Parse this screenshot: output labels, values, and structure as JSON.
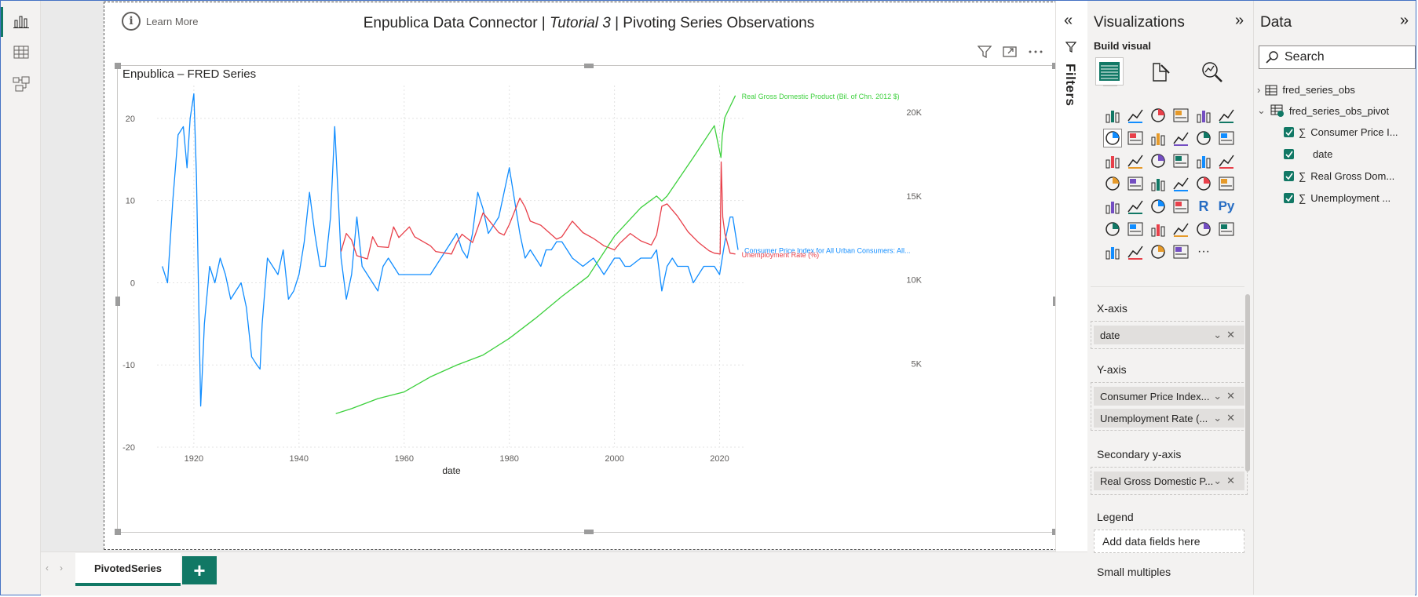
{
  "report": {
    "title_prefix": "Enpublica Data Connector | ",
    "title_italic": "Tutorial 3",
    "title_suffix": " | Pivoting Series Observations",
    "learn_more": "Learn More"
  },
  "chart_data": {
    "type": "line",
    "title": "Enpublica – FRED Series",
    "xlabel": "date",
    "xlim": [
      1913,
      2025
    ],
    "x_ticks": [
      1920,
      1940,
      1960,
      1980,
      2000,
      2020
    ],
    "ylim": [
      -20,
      24
    ],
    "y_ticks": [
      -20,
      -10,
      0,
      10,
      20
    ],
    "y2lim": [
      0,
      21600
    ],
    "y2_ticks": [
      5000,
      10000,
      15000,
      20000
    ],
    "y2_tick_labels": [
      "5K",
      "10K",
      "15K",
      "20K"
    ],
    "grid": true,
    "series": [
      {
        "name": "Consumer Price Index for All Urban Consumers: All...",
        "axis": "y",
        "color": "#118dff",
        "x": [
          1914,
          1915,
          1916,
          1917,
          1918,
          1918.7,
          1919.3,
          1920,
          1920.5,
          1921,
          1921.3,
          1921.6,
          1922,
          1923,
          1924,
          1925,
          1926,
          1927,
          1928,
          1929,
          1930,
          1931,
          1932,
          1932.6,
          1933,
          1934,
          1935,
          1936,
          1937,
          1938,
          1939,
          1940,
          1941,
          1942,
          1943,
          1944,
          1945,
          1946,
          1946.8,
          1947.5,
          1948,
          1949,
          1950,
          1951,
          1952,
          1953,
          1954,
          1955,
          1956,
          1957,
          1958,
          1959,
          1960,
          1962,
          1965,
          1967,
          1968,
          1969,
          1970,
          1971,
          1972,
          1973,
          1974,
          1975,
          1976,
          1977,
          1978,
          1979,
          1980,
          1981,
          1982,
          1983,
          1984,
          1986,
          1987,
          1988,
          1989,
          1990,
          1991,
          1992,
          1994,
          1996,
          1998,
          1999,
          2000,
          2001,
          2002,
          2003,
          2005,
          2007,
          2008,
          2009,
          2010,
          2011,
          2012,
          2014,
          2015,
          2017,
          2019,
          2020,
          2021,
          2022,
          2022.5,
          2023,
          2023.5
        ],
        "y": [
          2,
          0,
          10,
          18,
          19,
          14,
          20,
          23,
          13,
          -5,
          -15,
          -11,
          -5,
          2,
          0,
          3,
          1,
          -2,
          -1,
          0,
          -3,
          -9,
          -10,
          -10.5,
          -5,
          3,
          2,
          1,
          4,
          -2,
          -1,
          1,
          5,
          11,
          6,
          2,
          2,
          8,
          19,
          10,
          3,
          -2,
          1,
          8,
          2,
          1,
          0,
          -1,
          2,
          3,
          2,
          1,
          1,
          1,
          1,
          3,
          4,
          5,
          6,
          4,
          3,
          6,
          11,
          9,
          6,
          7,
          8,
          11,
          14,
          10,
          6,
          3,
          4,
          2,
          4,
          4,
          5,
          5,
          4,
          3,
          2,
          3,
          1,
          2,
          3,
          3,
          2,
          2,
          3,
          3,
          4,
          -1,
          2,
          3,
          2,
          2,
          0,
          2,
          2,
          1,
          5,
          8,
          8,
          6,
          4
        ]
      },
      {
        "name": "Unemployment Rate (%)",
        "axis": "y",
        "color": "#e8404a",
        "x": [
          1948,
          1949,
          1950,
          1951,
          1952,
          1953,
          1954,
          1955,
          1957,
          1958,
          1959,
          1961,
          1962,
          1965,
          1966,
          1969,
          1970,
          1971,
          1973,
          1975,
          1976,
          1978,
          1979,
          1980,
          1982,
          1983,
          1984,
          1986,
          1989,
          1990,
          1992,
          1994,
          1996,
          1998,
          2000,
          2001,
          2003,
          2005,
          2007,
          2008,
          2009,
          2010,
          2012,
          2014,
          2016,
          2018,
          2019,
          2020.1,
          2020.3,
          2020.6,
          2021,
          2022,
          2023
        ],
        "y": [
          3.8,
          6,
          5.2,
          3.3,
          3.1,
          2.9,
          5.6,
          4.4,
          4.3,
          6.8,
          5.5,
          6.8,
          5.6,
          4.5,
          3.8,
          3.5,
          4.9,
          5.9,
          4.9,
          8.5,
          7.7,
          6.1,
          5.8,
          7.1,
          10.3,
          9.2,
          7.5,
          7,
          5.3,
          5.6,
          7.5,
          6.1,
          5.4,
          4.5,
          4,
          4.8,
          6,
          5.1,
          4.6,
          5.8,
          9.3,
          9.6,
          8.1,
          6.2,
          4.9,
          3.9,
          3.6,
          3.5,
          14.7,
          8,
          6,
          3.6,
          3.5
        ]
      },
      {
        "name": "Real Gross Domestic Product (Bil. of Chn. 2012 $)",
        "axis": "y2",
        "color": "#3dd03d",
        "x": [
          1947,
          1950,
          1955,
          1960,
          1965,
          1970,
          1975,
          1980,
          1985,
          1990,
          1995,
          2000,
          2005,
          2008,
          2009,
          2010,
          2015,
          2019,
          2020.25,
          2020.5,
          2021,
          2023
        ],
        "y": [
          2000,
          2300,
          2900,
          3300,
          4200,
          4900,
          5500,
          6500,
          7700,
          9000,
          10200,
          12600,
          14300,
          15000,
          14700,
          15000,
          17300,
          19200,
          17300,
          18600,
          19700,
          21000
        ]
      }
    ]
  },
  "header_icons": [
    "filter-icon",
    "focus-mode-icon",
    "more-options-icon"
  ],
  "filters": {
    "label": "Filters"
  },
  "visualizations": {
    "title": "Visualizations",
    "build_visual": "Build visual",
    "x_axis": {
      "label": "X-axis",
      "field": "date"
    },
    "y_axis": {
      "label": "Y-axis",
      "fields": [
        "Consumer Price Index...",
        "Unemployment Rate (..."
      ]
    },
    "secondary_y": {
      "label": "Secondary y-axis",
      "field": "Real Gross Domestic P..."
    },
    "legend": {
      "label": "Legend",
      "placeholder": "Add data fields here"
    },
    "small_multiples": {
      "label": "Small multiples"
    },
    "r_label": "R",
    "py_label": "Py",
    "more_visuals": "···"
  },
  "data_pane": {
    "title": "Data",
    "search_placeholder": "Search",
    "tables": [
      {
        "name": "fred_series_obs",
        "expanded": false
      },
      {
        "name": "fred_series_obs_pivot",
        "expanded": true,
        "fields": [
          {
            "name": "Consumer Price I...",
            "sigma": true
          },
          {
            "name": "date",
            "sigma": false
          },
          {
            "name": "Real Gross Dom...",
            "sigma": true
          },
          {
            "name": "Unemployment ...",
            "sigma": true
          }
        ]
      }
    ]
  },
  "pages": {
    "active_tab": "PivotedSeries",
    "add_label": "+"
  },
  "colors": {
    "accent": "#117865",
    "cpi": "#118dff",
    "unemployment": "#e8404a",
    "gdp": "#3dd03d"
  }
}
